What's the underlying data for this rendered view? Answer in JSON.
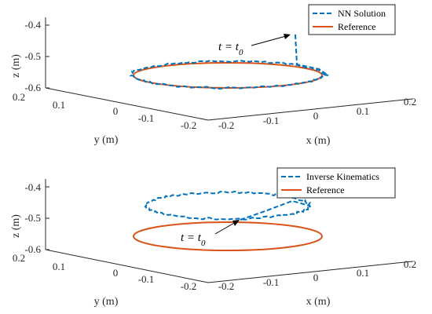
{
  "chart_data": [
    {
      "type": "line3d",
      "xlabel": "x (m)",
      "ylabel": "y (m)",
      "zlabel": "z (m)",
      "xlim": [
        -0.2,
        0.2
      ],
      "ylim": [
        -0.2,
        0.2
      ],
      "zlim": [
        -0.6,
        -0.4
      ],
      "x_ticks": [
        "-0.2",
        "-0.1",
        "0",
        "0.1",
        "0.2"
      ],
      "y_ticks": [
        "0.2",
        "0.1",
        "0",
        "-0.1",
        "-0.2"
      ],
      "z_ticks": [
        "-0.4",
        "-0.5",
        "-0.6"
      ],
      "annotation": "t = t0",
      "legend_position": "top-right",
      "series": [
        {
          "name": "NN Solution",
          "style": "dashed",
          "color": "#0072BD",
          "shape": "circle",
          "radius": 0.16,
          "z": -0.56,
          "start_point": {
            "x": 0.15,
            "y": -0.15,
            "z": -0.42
          }
        },
        {
          "name": "Reference",
          "style": "solid",
          "color": "#D95319",
          "shape": "circle",
          "radius": 0.16,
          "z": -0.56
        }
      ]
    },
    {
      "type": "line3d",
      "xlabel": "x (m)",
      "ylabel": "y (m)",
      "zlabel": "z (m)",
      "xlim": [
        -0.2,
        0.2
      ],
      "ylim": [
        -0.2,
        0.2
      ],
      "zlim": [
        -0.6,
        -0.4
      ],
      "x_ticks": [
        "-0.2",
        "-0.1",
        "0",
        "0.1",
        "0.2"
      ],
      "y_ticks": [
        "0.2",
        "0.1",
        "0",
        "-0.1",
        "-0.2"
      ],
      "z_ticks": [
        "-0.4",
        "-0.5",
        "-0.6"
      ],
      "annotation": "t = t0",
      "legend_position": "top-right",
      "series": [
        {
          "name": "Inverse Kinematics",
          "style": "dashed",
          "color": "#0072BD",
          "shape": "circle",
          "radius": 0.13,
          "z": -0.48
        },
        {
          "name": "Reference",
          "style": "solid",
          "color": "#D95319",
          "shape": "circle",
          "radius": 0.16,
          "z": -0.56
        }
      ]
    }
  ],
  "colors": {
    "nn": "#0072BD",
    "reference": "#D95319",
    "axis": "#262626"
  }
}
